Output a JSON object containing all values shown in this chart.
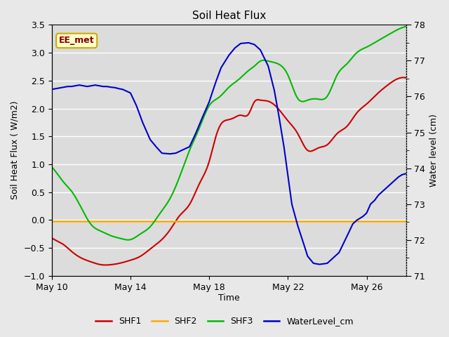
{
  "title": "Soil Heat Flux",
  "xlabel": "Time",
  "ylabel_left": "Soil Heat Flux ( W/m2)",
  "ylabel_right": "Water level (cm)",
  "ylim_left": [
    -1.0,
    3.5
  ],
  "ylim_right": [
    71.0,
    78.0
  ],
  "background_color": "#e8e8e8",
  "plot_bg_color": "#dcdcdc",
  "grid_color": "#ffffff",
  "annotation_text": "EE_met",
  "annotation_bg": "#ffffcc",
  "annotation_border": "#ccaa00",
  "annotation_text_color": "#880000",
  "legend_entries": [
    "SHF1",
    "SHF2",
    "SHF3",
    "WaterLevel_cm"
  ],
  "line_colors": [
    "#cc0000",
    "#ffaa00",
    "#00bb00",
    "#0000cc"
  ],
  "x_tick_labels": [
    "May 10",
    "May 14",
    "May 18",
    "May 22",
    "May 26"
  ],
  "x_tick_positions": [
    0,
    4,
    8,
    12,
    16
  ],
  "shf1_x": [
    0,
    0.3,
    0.6,
    1.0,
    1.5,
    2.0,
    2.5,
    3.0,
    3.5,
    4.0,
    4.5,
    5.0,
    5.5,
    6.0,
    6.5,
    7.0,
    7.5,
    8.0,
    8.3,
    8.6,
    9.0,
    9.3,
    9.6,
    10.0,
    10.3,
    10.6,
    11.0,
    11.5,
    12.0,
    12.5,
    13.0,
    13.3,
    13.6,
    14.0,
    14.5,
    15.0,
    15.5,
    16.0,
    16.5,
    17.0,
    17.5,
    18.0
  ],
  "shf1_y": [
    -0.32,
    -0.38,
    -0.44,
    -0.56,
    -0.68,
    -0.75,
    -0.8,
    -0.8,
    -0.77,
    -0.72,
    -0.65,
    -0.52,
    -0.38,
    -0.18,
    0.08,
    0.28,
    0.65,
    1.05,
    1.45,
    1.72,
    1.8,
    1.84,
    1.88,
    1.9,
    2.12,
    2.15,
    2.13,
    2.0,
    1.78,
    1.55,
    1.25,
    1.25,
    1.3,
    1.35,
    1.55,
    1.68,
    1.92,
    2.08,
    2.25,
    2.4,
    2.52,
    2.55
  ],
  "shf2_y": [
    -0.02
  ],
  "shf3_x": [
    0,
    0.3,
    0.6,
    1.0,
    1.5,
    2.0,
    2.5,
    3.0,
    3.5,
    4.0,
    4.5,
    5.0,
    5.5,
    6.0,
    6.5,
    7.0,
    7.5,
    8.0,
    8.5,
    9.0,
    9.5,
    10.0,
    10.3,
    10.6,
    11.0,
    11.5,
    12.0,
    12.5,
    13.0,
    13.5,
    14.0,
    14.5,
    15.0,
    15.5,
    16.0,
    16.5,
    17.0,
    17.5,
    18.0
  ],
  "shf3_y": [
    0.95,
    0.82,
    0.68,
    0.52,
    0.22,
    -0.08,
    -0.2,
    -0.28,
    -0.33,
    -0.35,
    -0.25,
    -0.12,
    0.12,
    0.38,
    0.78,
    1.25,
    1.65,
    2.05,
    2.2,
    2.38,
    2.52,
    2.68,
    2.76,
    2.85,
    2.85,
    2.8,
    2.6,
    2.18,
    2.15,
    2.17,
    2.22,
    2.6,
    2.8,
    3.0,
    3.1,
    3.2,
    3.3,
    3.4,
    3.47
  ],
  "wl_x": [
    0,
    0.2,
    0.4,
    0.6,
    0.8,
    1.0,
    1.2,
    1.4,
    1.6,
    1.8,
    2.0,
    2.2,
    2.4,
    2.6,
    2.8,
    3.0,
    3.2,
    3.4,
    3.6,
    3.8,
    4.0,
    4.3,
    4.6,
    5.0,
    5.3,
    5.6,
    6.0,
    6.3,
    6.6,
    7.0,
    7.3,
    7.6,
    8.0,
    8.3,
    8.6,
    9.0,
    9.3,
    9.6,
    10.0,
    10.3,
    10.6,
    11.0,
    11.3,
    11.5,
    11.8,
    12.0,
    12.2,
    12.5,
    12.8,
    13.0,
    13.3,
    13.6,
    14.0,
    14.3,
    14.6,
    15.0,
    15.3,
    15.5,
    15.8,
    16.0,
    16.2,
    16.4,
    16.6,
    16.8,
    17.0,
    17.2,
    17.4,
    17.6,
    17.8,
    18.0
  ],
  "wl_y": [
    76.2,
    76.22,
    76.24,
    76.26,
    76.28,
    76.28,
    76.3,
    76.32,
    76.3,
    76.28,
    76.3,
    76.32,
    76.3,
    76.28,
    76.28,
    76.26,
    76.25,
    76.22,
    76.2,
    76.15,
    76.1,
    75.75,
    75.3,
    74.8,
    74.6,
    74.42,
    74.4,
    74.42,
    74.5,
    74.6,
    74.95,
    75.35,
    75.85,
    76.35,
    76.8,
    77.15,
    77.35,
    77.48,
    77.5,
    77.45,
    77.3,
    76.85,
    76.2,
    75.6,
    74.6,
    73.8,
    73.0,
    72.4,
    71.9,
    71.55,
    71.35,
    71.32,
    71.35,
    71.5,
    71.65,
    72.1,
    72.45,
    72.55,
    72.65,
    72.75,
    73.0,
    73.1,
    73.25,
    73.35,
    73.45,
    73.55,
    73.65,
    73.75,
    73.82,
    73.85
  ]
}
